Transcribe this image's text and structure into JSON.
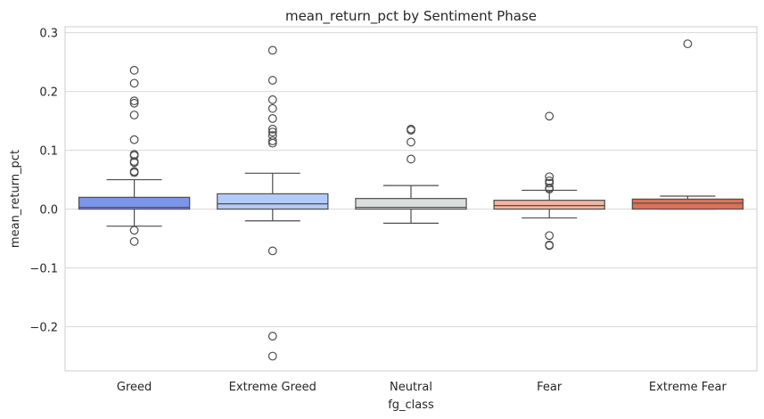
{
  "chart_data": {
    "type": "box",
    "title": "mean_return_pct by Sentiment Phase",
    "xlabel": "fg_class",
    "ylabel": "mean_return_pct",
    "ylim": [
      -0.275,
      0.31
    ],
    "yticks": [
      -0.2,
      -0.1,
      0.0,
      0.1,
      0.2,
      0.3
    ],
    "ytick_labels": [
      "−0.2",
      "−0.1",
      "0.0",
      "0.1",
      "0.2",
      "0.3"
    ],
    "grid": "horizontal",
    "categories": [
      "Greed",
      "Extreme Greed",
      "Neutral",
      "Fear",
      "Extreme Fear"
    ],
    "boxes": [
      {
        "category": "Greed",
        "color": "#7a96ea",
        "whisker_low": -0.029,
        "q1": 0.0,
        "median": 0.003,
        "q3": 0.02,
        "whisker_high": 0.05,
        "outliers": [
          0.236,
          0.214,
          0.184,
          0.18,
          0.16,
          0.118,
          0.093,
          0.091,
          0.081,
          0.079,
          0.064,
          0.062,
          -0.036,
          -0.055
        ]
      },
      {
        "category": "Extreme Greed",
        "color": "#b2cbfa",
        "whisker_low": -0.02,
        "q1": 0.0,
        "median": 0.009,
        "q3": 0.026,
        "whisker_high": 0.061,
        "outliers": [
          0.27,
          0.219,
          0.186,
          0.171,
          0.154,
          0.136,
          0.131,
          0.125,
          0.116,
          0.112,
          -0.071,
          -0.216,
          -0.25
        ]
      },
      {
        "category": "Neutral",
        "color": "#dcdddd",
        "whisker_low": -0.024,
        "q1": 0.0,
        "median": 0.003,
        "q3": 0.018,
        "whisker_high": 0.04,
        "outliers": [
          0.136,
          0.134,
          0.114,
          0.085
        ]
      },
      {
        "category": "Fear",
        "color": "#f2b69b",
        "whisker_low": -0.015,
        "q1": 0.0,
        "median": 0.006,
        "q3": 0.015,
        "whisker_high": 0.032,
        "outliers": [
          0.158,
          0.055,
          0.048,
          0.044,
          0.036,
          0.034,
          -0.045,
          -0.061,
          -0.062
        ]
      },
      {
        "category": "Extreme Fear",
        "color": "#dc7156",
        "whisker_low": 0.0,
        "q1": 0.0,
        "median": 0.01,
        "q3": 0.017,
        "whisker_high": 0.022,
        "outliers": [
          0.281
        ]
      }
    ]
  }
}
